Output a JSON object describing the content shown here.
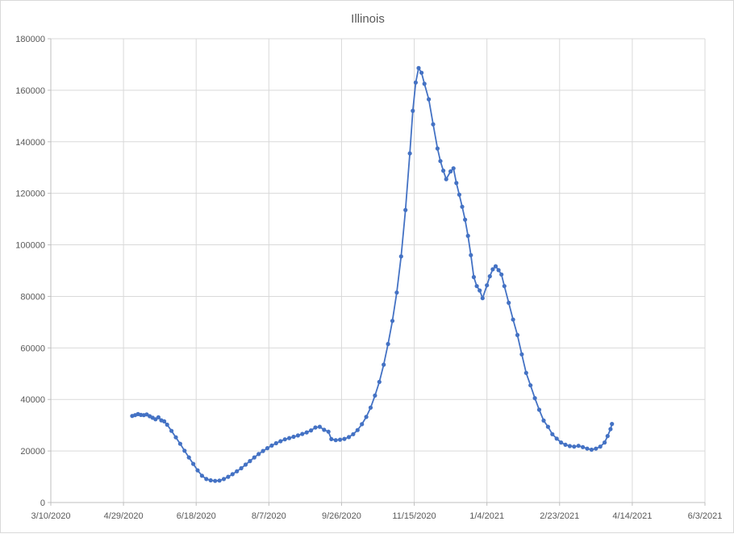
{
  "window": {
    "background": "#ffffff",
    "frame_border_color": "#d9d9d9"
  },
  "chart_data": {
    "type": "scatter",
    "title": "Illinois",
    "legend": "none",
    "grid": true,
    "colors": {
      "series": "#4472C4",
      "gridline": "#D9D9D9",
      "axis_line": "#BFBFBF",
      "tick_text": "#595959",
      "title_text": "#595959"
    },
    "x_axis": {
      "origin_date": "3/10/2020",
      "range_days": [
        0,
        450
      ],
      "tick_interval_days": 50,
      "tick_labels": [
        "3/10/2020",
        "4/29/2020",
        "6/18/2020",
        "8/7/2020",
        "9/26/2020",
        "11/15/2020",
        "1/4/2021",
        "2/23/2021",
        "4/14/2021",
        "6/3/2021"
      ]
    },
    "y_axis": {
      "min": 0,
      "max": 180000,
      "step": 20000,
      "tick_labels": [
        "0",
        "20000",
        "40000",
        "60000",
        "80000",
        "100000",
        "120000",
        "140000",
        "160000",
        "180000"
      ]
    },
    "series": [
      {
        "name": "Illinois",
        "color": "#4472C4",
        "points": [
          [
            "5/5/2020",
            33600
          ],
          [
            "5/7/2020",
            33900
          ],
          [
            "5/9/2020",
            34300
          ],
          [
            "5/11/2020",
            34000
          ],
          [
            "5/13/2020",
            33900
          ],
          [
            "5/15/2020",
            34200
          ],
          [
            "5/17/2020",
            33500
          ],
          [
            "5/19/2020",
            32900
          ],
          [
            "5/21/2020",
            32300
          ],
          [
            "5/23/2020",
            33100
          ],
          [
            "5/25/2020",
            31900
          ],
          [
            "5/27/2020",
            31500
          ],
          [
            "5/29/2020",
            30200
          ],
          [
            "6/1/2020",
            27800
          ],
          [
            "6/4/2020",
            25300
          ],
          [
            "6/7/2020",
            22800
          ],
          [
            "6/10/2020",
            20100
          ],
          [
            "6/13/2020",
            17500
          ],
          [
            "6/16/2020",
            15000
          ],
          [
            "6/19/2020",
            12500
          ],
          [
            "6/22/2020",
            10400
          ],
          [
            "6/25/2020",
            9100
          ],
          [
            "6/28/2020",
            8600
          ],
          [
            "7/1/2020",
            8400
          ],
          [
            "7/4/2020",
            8500
          ],
          [
            "7/7/2020",
            9100
          ],
          [
            "7/10/2020",
            10000
          ],
          [
            "7/13/2020",
            11000
          ],
          [
            "7/16/2020",
            12100
          ],
          [
            "7/19/2020",
            13300
          ],
          [
            "7/22/2020",
            14700
          ],
          [
            "7/25/2020",
            16100
          ],
          [
            "7/28/2020",
            17500
          ],
          [
            "7/31/2020",
            18800
          ],
          [
            "8/3/2020",
            20000
          ],
          [
            "8/6/2020",
            21100
          ],
          [
            "8/9/2020",
            22100
          ],
          [
            "8/12/2020",
            23000
          ],
          [
            "8/15/2020",
            23800
          ],
          [
            "8/18/2020",
            24500
          ],
          [
            "8/21/2020",
            25000
          ],
          [
            "8/24/2020",
            25500
          ],
          [
            "8/27/2020",
            26000
          ],
          [
            "8/30/2020",
            26600
          ],
          [
            "9/2/2020",
            27200
          ],
          [
            "9/5/2020",
            28000
          ],
          [
            "9/8/2020",
            29100
          ],
          [
            "9/11/2020",
            29400
          ],
          [
            "9/14/2020",
            28200
          ],
          [
            "9/17/2020",
            27500
          ],
          [
            "9/19/2020",
            24600
          ],
          [
            "9/22/2020",
            24200
          ],
          [
            "9/25/2020",
            24400
          ],
          [
            "9/28/2020",
            24700
          ],
          [
            "10/1/2020",
            25400
          ],
          [
            "10/4/2020",
            26500
          ],
          [
            "10/7/2020",
            28100
          ],
          [
            "10/10/2020",
            30400
          ],
          [
            "10/13/2020",
            33200
          ],
          [
            "10/16/2020",
            36800
          ],
          [
            "10/19/2020",
            41500
          ],
          [
            "10/22/2020",
            46800
          ],
          [
            "10/25/2020",
            53500
          ],
          [
            "10/28/2020",
            61500
          ],
          [
            "10/31/2020",
            70500
          ],
          [
            "11/3/2020",
            81500
          ],
          [
            "11/6/2020",
            95500
          ],
          [
            "11/9/2020",
            113500
          ],
          [
            "11/12/2020",
            135500
          ],
          [
            "11/14/2020",
            152000
          ],
          [
            "11/16/2020",
            163000
          ],
          [
            "11/18/2020",
            168600
          ],
          [
            "11/20/2020",
            166800
          ],
          [
            "11/22/2020",
            162500
          ],
          [
            "11/25/2020",
            156500
          ],
          [
            "11/28/2020",
            146800
          ],
          [
            "12/1/2020",
            137400
          ],
          [
            "12/3/2020",
            132500
          ],
          [
            "12/5/2020",
            128800
          ],
          [
            "12/7/2020",
            125500
          ],
          [
            "12/10/2020",
            128500
          ],
          [
            "12/12/2020",
            129700
          ],
          [
            "12/14/2020",
            124000
          ],
          [
            "12/16/2020",
            119500
          ],
          [
            "12/18/2020",
            114800
          ],
          [
            "12/20/2020",
            109800
          ],
          [
            "12/22/2020",
            103500
          ],
          [
            "12/24/2020",
            96000
          ],
          [
            "12/26/2020",
            87500
          ],
          [
            "12/28/2020",
            84000
          ],
          [
            "12/30/2020",
            82300
          ],
          [
            "1/1/2021",
            79300
          ],
          [
            "1/4/2021",
            84300
          ],
          [
            "1/6/2021",
            87800
          ],
          [
            "1/8/2021",
            90500
          ],
          [
            "1/10/2021",
            91700
          ],
          [
            "1/12/2021",
            90200
          ],
          [
            "1/14/2021",
            88500
          ],
          [
            "1/16/2021",
            84000
          ],
          [
            "1/19/2021",
            77500
          ],
          [
            "1/22/2021",
            71000
          ],
          [
            "1/25/2021",
            65000
          ],
          [
            "1/28/2021",
            57500
          ],
          [
            "1/31/2021",
            50300
          ],
          [
            "2/3/2021",
            45500
          ],
          [
            "2/6/2021",
            40500
          ],
          [
            "2/9/2021",
            36000
          ],
          [
            "2/12/2021",
            31800
          ],
          [
            "2/15/2021",
            29400
          ],
          [
            "2/18/2021",
            26500
          ],
          [
            "2/21/2021",
            24800
          ],
          [
            "2/24/2021",
            23300
          ],
          [
            "2/27/2021",
            22400
          ],
          [
            "3/2/2021",
            21900
          ],
          [
            "3/5/2021",
            21700
          ],
          [
            "3/8/2021",
            22000
          ],
          [
            "3/11/2021",
            21500
          ],
          [
            "3/14/2021",
            20900
          ],
          [
            "3/17/2021",
            20500
          ],
          [
            "3/20/2021",
            20900
          ],
          [
            "3/23/2021",
            21700
          ],
          [
            "3/26/2021",
            23300
          ],
          [
            "3/28/2021",
            25800
          ],
          [
            "3/30/2021",
            28500
          ],
          [
            "3/31/2021",
            30500
          ]
        ]
      }
    ]
  }
}
